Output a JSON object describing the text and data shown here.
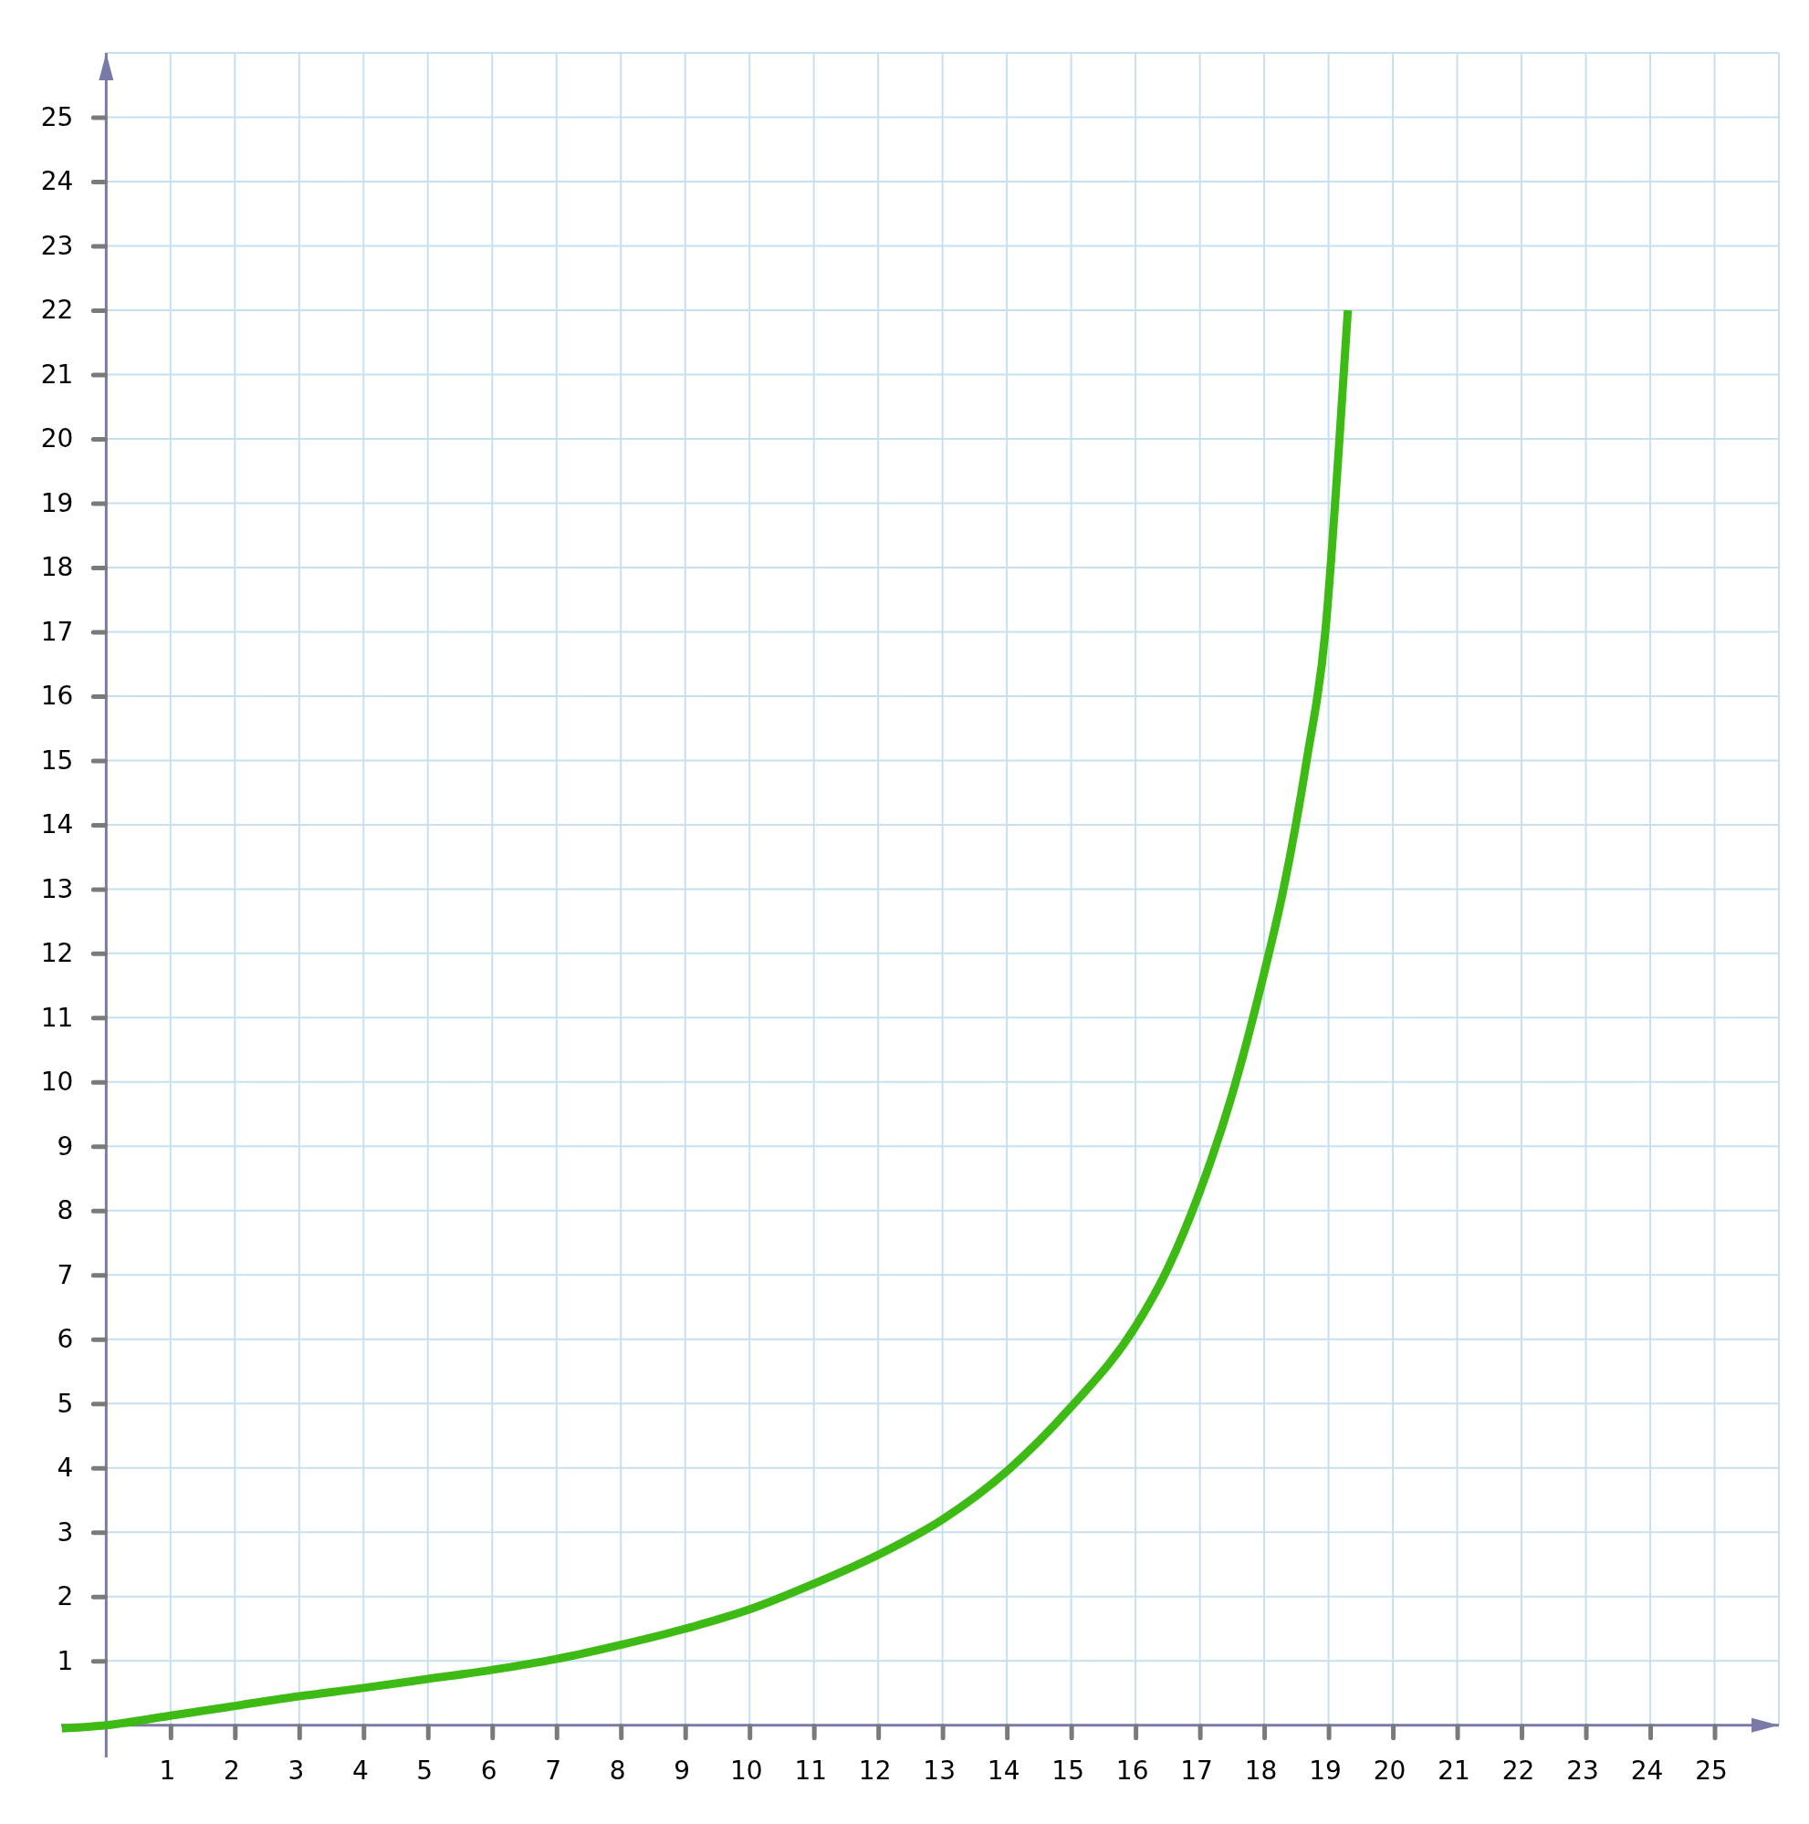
{
  "chart_data": {
    "type": "line",
    "xlim": [
      -0.7,
      26
    ],
    "ylim": [
      -0.5,
      26
    ],
    "xticks": [
      1,
      2,
      3,
      4,
      5,
      6,
      7,
      8,
      9,
      10,
      11,
      12,
      13,
      14,
      15,
      16,
      17,
      18,
      19,
      20,
      21,
      22,
      23,
      24,
      25
    ],
    "yticks": [
      1,
      2,
      3,
      4,
      5,
      6,
      7,
      8,
      9,
      10,
      11,
      12,
      13,
      14,
      15,
      16,
      17,
      18,
      19,
      20,
      21,
      22,
      23,
      24,
      25
    ],
    "grid": true,
    "marker": "none",
    "line_style": "solid",
    "series": [
      {
        "color": "#3dbb14",
        "x": [
          -0.69,
          0,
          1,
          2,
          3,
          4,
          5,
          6,
          7,
          8,
          9,
          10,
          11,
          12,
          13,
          14,
          15,
          16,
          16.5,
          17,
          17.5,
          18,
          18.3,
          18.66,
          18.95,
          19.17,
          19.3
        ],
        "values": [
          -0.05,
          0,
          0.15,
          0.3,
          0.45,
          0.58,
          0.72,
          0.86,
          1.03,
          1.25,
          1.5,
          1.8,
          2.2,
          2.65,
          3.2,
          3.95,
          4.95,
          6.2,
          7.1,
          8.3,
          9.8,
          11.7,
          13,
          15,
          17,
          20,
          22
        ]
      }
    ]
  }
}
